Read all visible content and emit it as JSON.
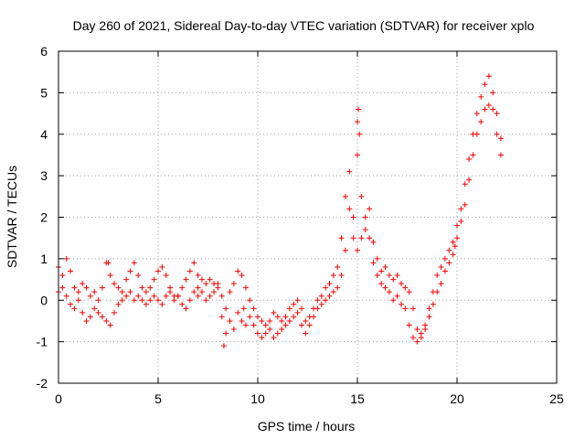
{
  "chart_data": {
    "type": "scatter",
    "title": "Day 260 of 2021, Sidereal Day-to-day VTEC variation (SDTVAR) for receiver xplo",
    "xlabel": "GPS time / hours",
    "ylabel": "SDTVAR / TECUs",
    "xlim": [
      0,
      25
    ],
    "ylim": [
      -2,
      6
    ],
    "xticks": [
      0,
      5,
      10,
      15,
      20,
      25
    ],
    "yticks": [
      -2,
      -1,
      0,
      1,
      2,
      3,
      4,
      5,
      6
    ],
    "grid": true,
    "marker": "+",
    "color": "#ff0000",
    "series": [
      {
        "name": "SDTVAR",
        "x": [
          0.0,
          0.2,
          0.4,
          0.6,
          0.8,
          1.0,
          1.2,
          1.4,
          1.6,
          1.8,
          2.0,
          2.2,
          2.4,
          2.6,
          2.8,
          3.0,
          3.2,
          3.4,
          3.6,
          3.8,
          4.0,
          4.2,
          4.4,
          4.6,
          4.8,
          5.0,
          5.2,
          5.4,
          5.6,
          5.8,
          6.0,
          6.2,
          6.4,
          6.6,
          6.8,
          7.0,
          7.2,
          7.4,
          7.6,
          7.8,
          8.0,
          8.2,
          8.4,
          8.6,
          8.8,
          9.0,
          9.2,
          9.4,
          9.6,
          9.8,
          10.0,
          10.2,
          10.4,
          10.6,
          10.8,
          11.0,
          11.2,
          11.4,
          11.6,
          11.8,
          12.0,
          12.2,
          12.4,
          12.6,
          12.8,
          13.0,
          13.2,
          13.4,
          13.6,
          13.8,
          14.0,
          14.2,
          14.4,
          14.6,
          14.8,
          15.0,
          15.2,
          15.4,
          15.6,
          15.8,
          16.0,
          16.2,
          16.4,
          16.6,
          16.8,
          17.0,
          17.2,
          17.4,
          17.6,
          17.8,
          18.0,
          18.2,
          18.4,
          18.6,
          18.8,
          19.0,
          19.2,
          19.4,
          19.6,
          19.8,
          20.0,
          20.2,
          20.4,
          20.6,
          20.8,
          21.0,
          21.2,
          21.4,
          21.6,
          21.8,
          22.0,
          22.2,
          0.0,
          0.2,
          0.4,
          0.6,
          0.8,
          1.0,
          1.2,
          1.4,
          1.6,
          1.8,
          2.0,
          2.2,
          2.4,
          2.6,
          2.8,
          3.0,
          3.2,
          3.4,
          3.6,
          3.8,
          4.0,
          4.2,
          4.4,
          4.6,
          4.8,
          5.0,
          5.2,
          5.4,
          5.6,
          5.8,
          6.0,
          6.2,
          6.4,
          6.6,
          6.8,
          7.0,
          7.2,
          7.4,
          7.6,
          7.8,
          8.0,
          8.2,
          8.4,
          8.6,
          8.8,
          9.0,
          9.2,
          9.4,
          9.6,
          9.8,
          10.0,
          10.2,
          10.4,
          10.6,
          10.8,
          11.0,
          11.2,
          11.4,
          11.6,
          11.8,
          12.0,
          12.2,
          12.4,
          12.6,
          12.8,
          13.0,
          13.2,
          13.4,
          13.6,
          13.8,
          14.0,
          14.2,
          14.4,
          14.6,
          14.8,
          15.0,
          15.2,
          15.4,
          15.6,
          15.8,
          16.0,
          16.2,
          16.4,
          16.6,
          16.8,
          17.0,
          17.2,
          17.4,
          17.6,
          17.8,
          18.0,
          18.2,
          18.4,
          18.6,
          18.8,
          19.0,
          19.2,
          19.4,
          19.6,
          19.8,
          20.0,
          20.2,
          20.4,
          20.6,
          20.8,
          21.0,
          21.2,
          21.4,
          21.6,
          21.8,
          22.0,
          22.2,
          15.0,
          15.05,
          15.1,
          8.3,
          9.3,
          2.5,
          7.0,
          19.9
        ],
        "y": [
          0.8,
          0.6,
          1.0,
          0.7,
          0.3,
          0.2,
          0.4,
          0.3,
          0.1,
          0.2,
          0.0,
          0.3,
          0.9,
          0.6,
          0.4,
          0.3,
          0.2,
          0.5,
          0.7,
          0.9,
          0.6,
          0.3,
          0.2,
          0.3,
          0.5,
          0.7,
          0.8,
          0.6,
          0.3,
          0.1,
          0.1,
          0.3,
          0.5,
          0.7,
          0.9,
          0.6,
          0.5,
          0.4,
          0.5,
          0.4,
          0.3,
          0.1,
          -0.2,
          0.2,
          0.4,
          0.7,
          0.6,
          0.3,
          0.0,
          -0.2,
          -0.4,
          -0.5,
          -0.6,
          -0.5,
          -0.3,
          -0.4,
          -0.5,
          -0.4,
          -0.2,
          -0.1,
          0.0,
          -0.2,
          -0.5,
          -0.4,
          -0.2,
          0.0,
          0.1,
          0.3,
          0.4,
          0.6,
          0.8,
          1.5,
          2.5,
          3.1,
          2.0,
          3.5,
          2.5,
          2.0,
          2.2,
          1.4,
          1.0,
          0.7,
          0.8,
          0.6,
          0.5,
          0.6,
          0.4,
          0.3,
          0.2,
          -0.2,
          -0.7,
          -0.8,
          -0.6,
          -0.2,
          0.2,
          0.6,
          0.8,
          1.0,
          1.2,
          1.4,
          1.8,
          2.2,
          2.8,
          3.4,
          4.0,
          4.5,
          4.9,
          5.2,
          5.4,
          5.0,
          4.5,
          3.9,
          0.2,
          0.3,
          0.1,
          -0.1,
          -0.2,
          0.0,
          -0.3,
          -0.5,
          -0.4,
          -0.2,
          -0.3,
          -0.4,
          -0.5,
          -0.6,
          -0.3,
          -0.1,
          0.0,
          0.1,
          0.2,
          0.0,
          0.1,
          0.0,
          -0.1,
          0.0,
          0.1,
          0.0,
          -0.1,
          0.1,
          0.2,
          0.0,
          0.1,
          -0.1,
          -0.2,
          0.0,
          0.2,
          0.3,
          0.2,
          0.0,
          0.1,
          0.2,
          0.4,
          -0.4,
          -0.8,
          -0.5,
          -0.7,
          -0.3,
          -0.5,
          -0.6,
          -0.4,
          -0.6,
          -0.8,
          -0.9,
          -0.8,
          -0.7,
          -0.9,
          -0.8,
          -0.7,
          -0.6,
          -0.5,
          -0.4,
          -0.3,
          -0.6,
          -0.8,
          -0.6,
          -0.4,
          -0.2,
          -0.1,
          0.0,
          0.1,
          0.2,
          0.3,
          0.6,
          1.2,
          2.2,
          1.5,
          1.2,
          1.5,
          1.7,
          1.5,
          0.9,
          0.6,
          0.4,
          0.3,
          0.2,
          0.0,
          0.1,
          -0.1,
          -0.2,
          -0.6,
          -0.9,
          -1.0,
          -0.9,
          -0.7,
          -0.4,
          -0.1,
          0.2,
          0.4,
          0.7,
          0.9,
          1.1,
          1.5,
          1.9,
          2.3,
          2.9,
          3.5,
          4.0,
          4.3,
          4.6,
          4.7,
          4.6,
          4.0,
          3.5,
          4.3,
          4.6,
          4.0,
          -1.1,
          -0.2,
          0.9,
          0.1,
          1.3
        ]
      }
    ]
  }
}
